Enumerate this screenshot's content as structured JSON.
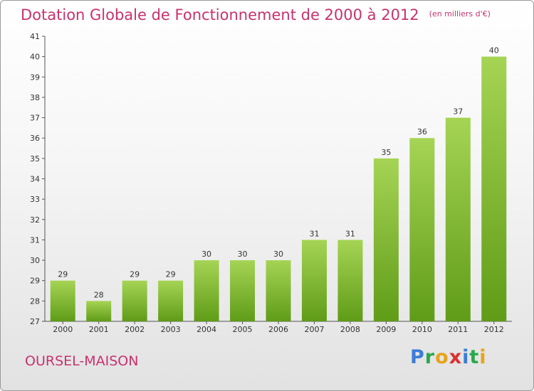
{
  "header": {
    "title": "Dotation Globale de Fonctionnement de 2000 à 2012",
    "unit": "(en milliers d'€)"
  },
  "footer": {
    "commune": "OURSEL-MAISON",
    "logo": {
      "letters": [
        "P",
        "r",
        "o",
        "x",
        "i",
        "t",
        "i"
      ],
      "colors": [
        "#3b7dd8",
        "#2aa84a",
        "#e8a319",
        "#d9302f",
        "#3b7dd8",
        "#2aa84a",
        "#e8a319"
      ]
    }
  },
  "colors": {
    "bar_top": "#a6d455",
    "bar_bottom": "#5f9c17",
    "title": "#c8326e"
  },
  "chart_data": {
    "type": "bar",
    "title": "Dotation Globale de Fonctionnement de 2000 à 2012",
    "subtitle": "(en milliers d'€)",
    "categories": [
      "2000",
      "2001",
      "2002",
      "2003",
      "2004",
      "2005",
      "2006",
      "2007",
      "2008",
      "2009",
      "2010",
      "2011",
      "2012"
    ],
    "values": [
      29,
      28,
      29,
      29,
      30,
      30,
      30,
      31,
      31,
      35,
      36,
      37,
      40
    ],
    "ylim": [
      27,
      41
    ],
    "yticks": [
      27,
      28,
      29,
      30,
      31,
      32,
      33,
      34,
      35,
      36,
      37,
      38,
      39,
      40,
      41
    ],
    "grid": false,
    "data_labels": true
  }
}
